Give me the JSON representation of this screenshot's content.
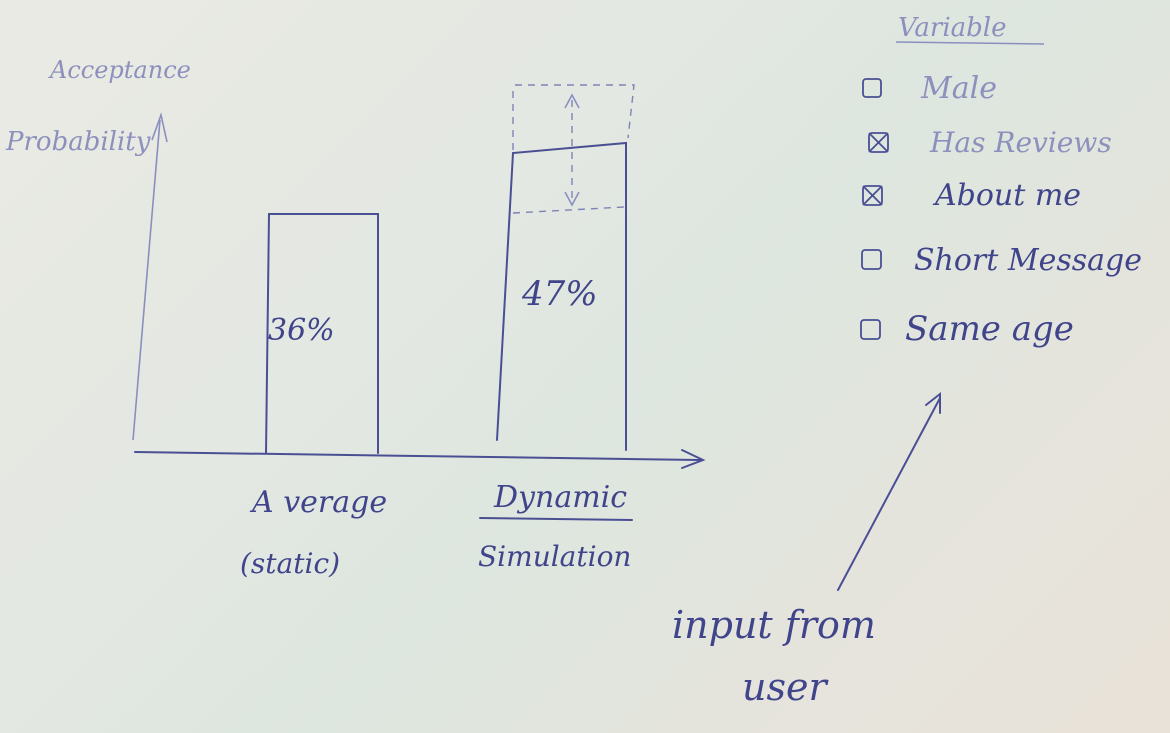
{
  "chart": {
    "ylabel_top": "Acceptance",
    "ylabel_bottom": "Probability",
    "bars": [
      {
        "label": "A verage",
        "sublabel": "(static)",
        "value_label": "36%"
      },
      {
        "label": "Dynamic",
        "sublabel": "Simulation",
        "value_label": "47%"
      }
    ]
  },
  "variables": {
    "title": "Variable",
    "items": [
      {
        "label": "Male",
        "checked": false
      },
      {
        "label": "Has Reviews",
        "checked": true
      },
      {
        "label": "About me",
        "checked": true
      },
      {
        "label": "Short Message",
        "checked": false
      },
      {
        "label": "Same age",
        "checked": false
      }
    ]
  },
  "annotation": {
    "line1": "input from",
    "line2": "user"
  },
  "colors": {
    "ink": "#4a4f94",
    "paper": "#e4e8e2"
  }
}
